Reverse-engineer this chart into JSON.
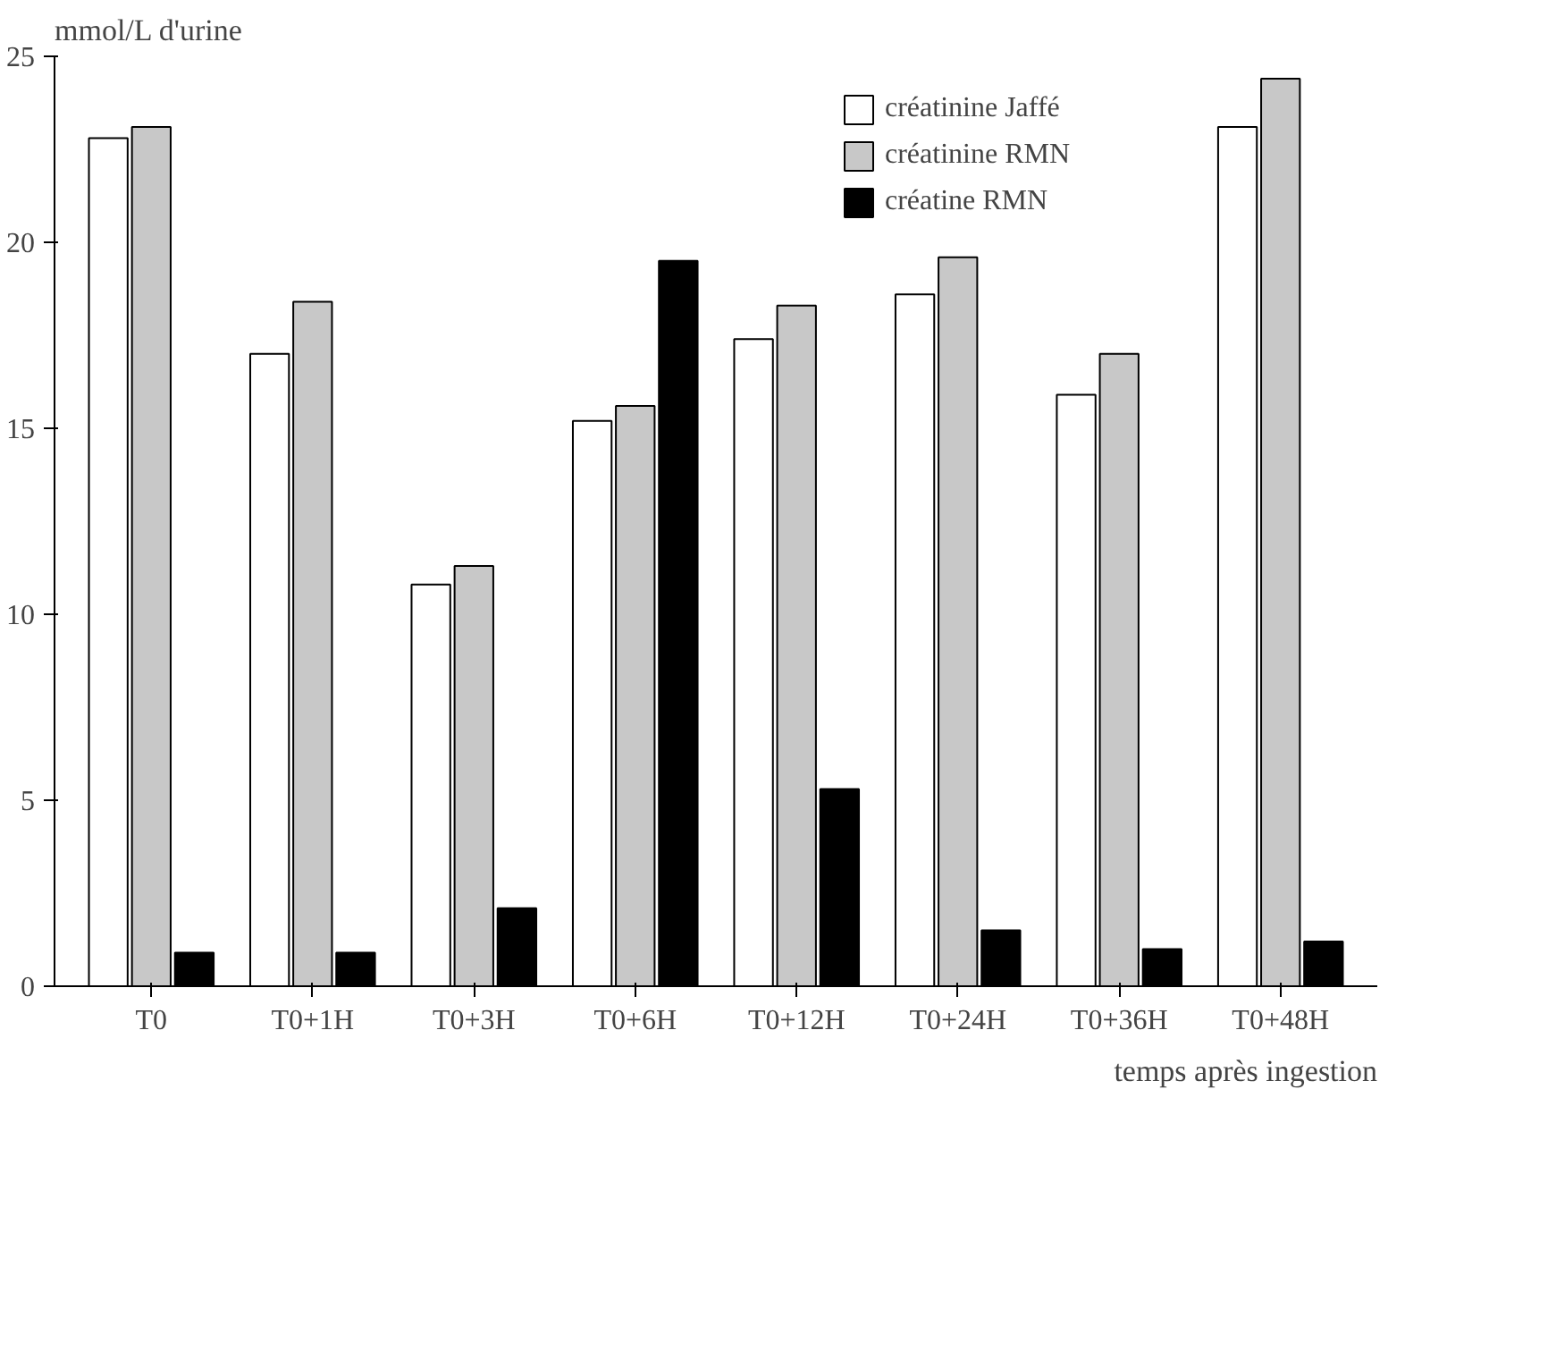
{
  "chart_data": {
    "type": "bar",
    "ylabel": "mmol/L d'urine",
    "xlabel": "temps après ingestion",
    "categories": [
      "T0",
      "T0+1H",
      "T0+3H",
      "T0+6H",
      "T0+12H",
      "T0+24H",
      "T0+36H",
      "T0+48H"
    ],
    "series": [
      {
        "name": "créatinine Jaffé",
        "color": "#ffffff",
        "values": [
          22.8,
          17.0,
          10.8,
          15.2,
          17.4,
          18.6,
          15.9,
          23.1
        ]
      },
      {
        "name": "créatinine RMN",
        "color": "#c8c8c8",
        "values": [
          23.1,
          18.4,
          11.3,
          15.6,
          18.3,
          19.6,
          17.0,
          24.4
        ]
      },
      {
        "name": "créatine RMN",
        "color": "#000000",
        "values": [
          0.9,
          0.9,
          2.1,
          19.5,
          5.3,
          1.5,
          1.0,
          1.2
        ]
      }
    ],
    "ylim": [
      0,
      25
    ],
    "yticks": [
      0,
      5,
      10,
      15,
      20,
      25
    ],
    "grid": false,
    "legend": "top right"
  }
}
